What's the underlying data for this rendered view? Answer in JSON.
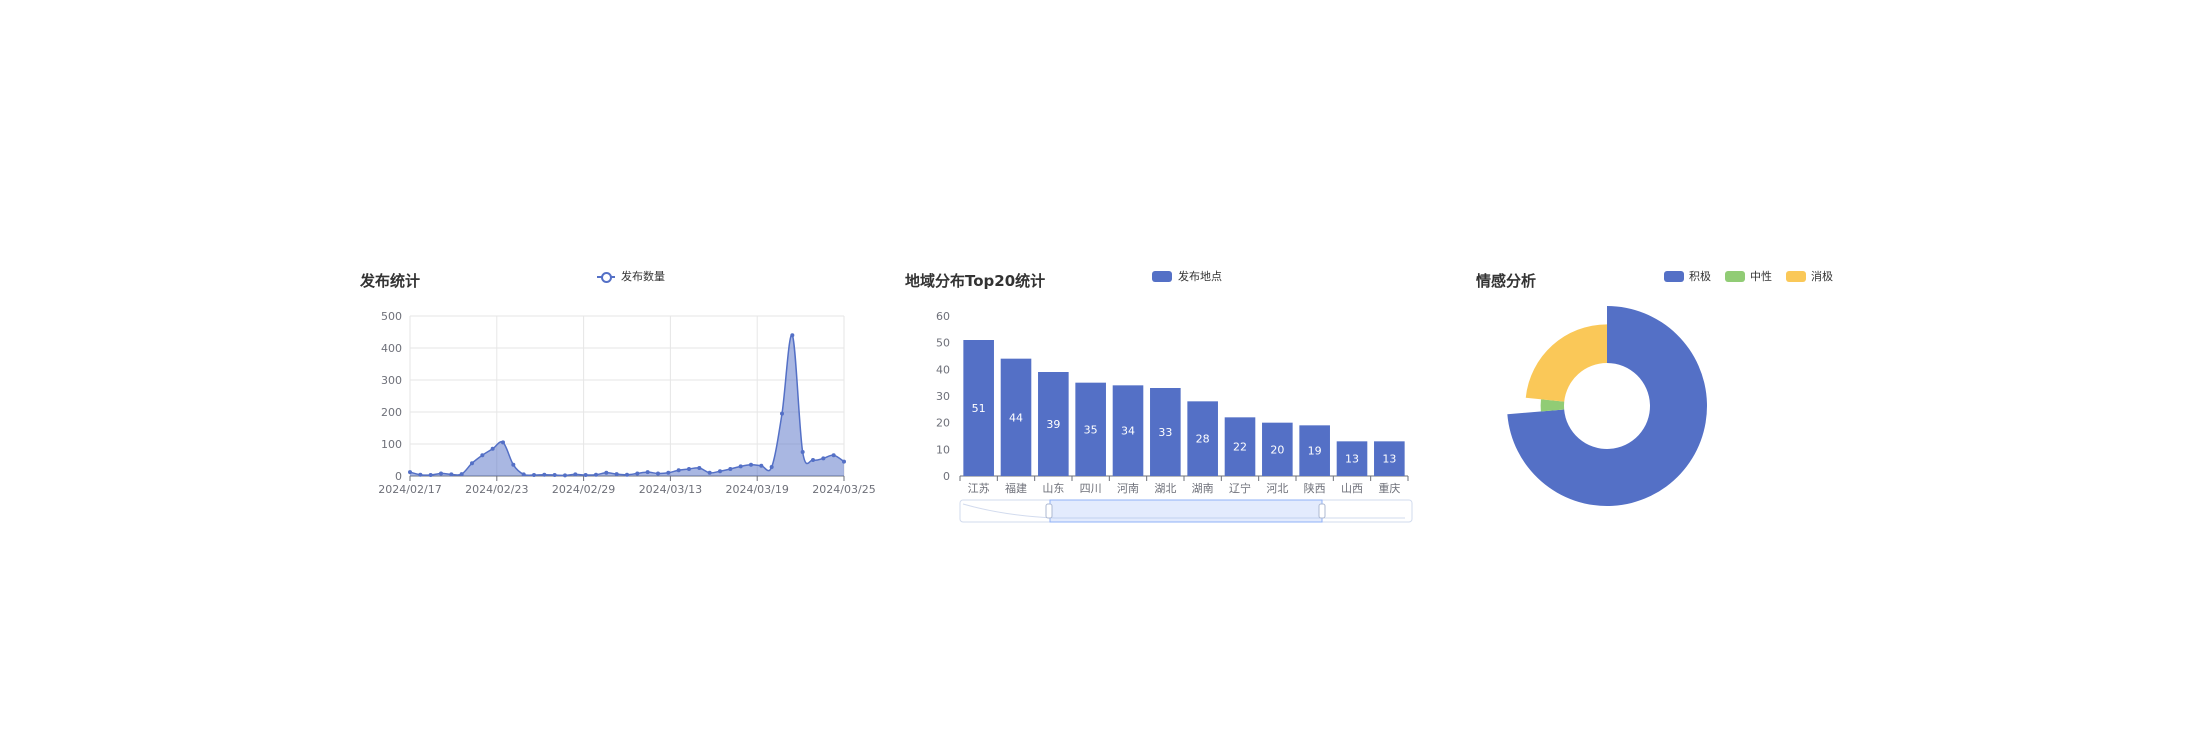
{
  "charts": {
    "line": {
      "title": "发布统计",
      "legend": "发布数量",
      "color": "#5470c6"
    },
    "bar": {
      "title": "地域分布Top20统计",
      "legend": "发布地点",
      "color": "#5470c6"
    },
    "pie": {
      "title": "情感分析",
      "legend": [
        "积极",
        "中性",
        "消极"
      ],
      "colors": [
        "#5470c6",
        "#91cc75",
        "#fac858"
      ]
    }
  },
  "chart_data": [
    {
      "type": "area",
      "title": "发布统计",
      "series": [
        {
          "name": "发布数量",
          "values": [
            12,
            4,
            3,
            8,
            5,
            6,
            40,
            65,
            85,
            105,
            35,
            5,
            3,
            4,
            3,
            2,
            5,
            3,
            4,
            10,
            6,
            4,
            8,
            12,
            8,
            10,
            18,
            22,
            25,
            10,
            15,
            22,
            30,
            35,
            32,
            28,
            195,
            440,
            75,
            50,
            55,
            65,
            45
          ]
        }
      ],
      "x_start": "2024/02/17",
      "x_ticks": [
        "2024/02/17",
        "2024/02/23",
        "2024/02/29",
        "2024/03/13",
        "2024/03/19",
        "2024/03/25"
      ],
      "ylim": [
        0,
        500
      ],
      "y_ticks": [
        0,
        100,
        200,
        300,
        400,
        500
      ],
      "grid": true,
      "legend_position": "top-center"
    },
    {
      "type": "bar",
      "title": "地域分布Top20统计",
      "categories": [
        "江苏",
        "福建",
        "山东",
        "四川",
        "河南",
        "湖北",
        "湖南",
        "辽宁",
        "河北",
        "陕西",
        "山西",
        "重庆"
      ],
      "series": [
        {
          "name": "发布地点",
          "values": [
            51,
            44,
            39,
            35,
            34,
            33,
            28,
            22,
            20,
            19,
            13,
            13
          ]
        }
      ],
      "ylim": [
        0,
        60
      ],
      "y_ticks": [
        0,
        10,
        20,
        30,
        40,
        50,
        60
      ],
      "data_labels": true,
      "data_zoom": true
    },
    {
      "type": "pie",
      "title": "情感分析",
      "categories": [
        "积极",
        "中性",
        "消极"
      ],
      "values": [
        63,
        2.5,
        20
      ],
      "donut": true,
      "legend_position": "top-right"
    }
  ]
}
